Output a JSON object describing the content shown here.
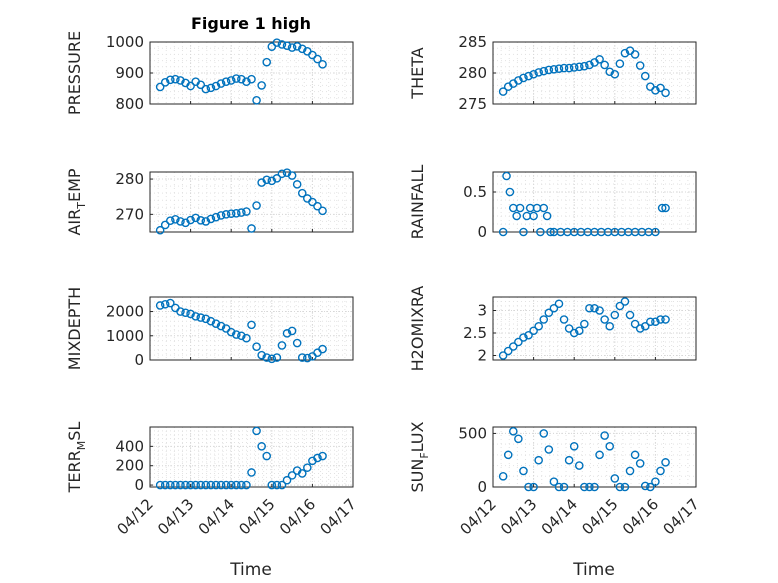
{
  "title": "Figure 1 high",
  "xlabel": "Time",
  "marker_color": "#0072BD",
  "x_ticks": [
    "04/12",
    "04/13",
    "04/14",
    "04/15",
    "04/16",
    "04/17"
  ],
  "chart_data": [
    {
      "type": "scatter",
      "title": "Figure 1 high",
      "ylabel": "PRESSURE",
      "xlabel": "",
      "xlim": [
        "04/12",
        "04/17"
      ],
      "ylim": [
        800,
        1000
      ],
      "yticks": [
        800,
        900,
        1000
      ],
      "grid": true,
      "x": [
        "04/12 06:00",
        "04/12 09:00",
        "04/12 12:00",
        "04/12 15:00",
        "04/12 18:00",
        "04/12 21:00",
        "04/13 00:00",
        "04/13 03:00",
        "04/13 06:00",
        "04/13 09:00",
        "04/13 12:00",
        "04/13 15:00",
        "04/13 18:00",
        "04/13 21:00",
        "04/14 00:00",
        "04/14 03:00",
        "04/14 06:00",
        "04/14 09:00",
        "04/14 12:00",
        "04/14 15:00",
        "04/14 18:00",
        "04/14 21:00",
        "04/15 00:00",
        "04/15 03:00",
        "04/15 06:00",
        "04/15 09:00",
        "04/15 12:00",
        "04/15 15:00",
        "04/15 18:00",
        "04/15 21:00",
        "04/16 00:00",
        "04/16 03:00",
        "04/16 06:00"
      ],
      "y": [
        855,
        870,
        878,
        880,
        876,
        868,
        858,
        872,
        862,
        848,
        852,
        858,
        866,
        872,
        876,
        882,
        880,
        872,
        880,
        812,
        860,
        935,
        985,
        998,
        992,
        988,
        982,
        986,
        978,
        970,
        958,
        945,
        928
      ]
    },
    {
      "type": "scatter",
      "ylabel": "THETA",
      "xlim": [
        "04/12",
        "04/17"
      ],
      "ylim": [
        275,
        285
      ],
      "yticks": [
        275,
        280,
        285
      ],
      "grid": true,
      "x": [
        "04/12 06:00",
        "04/12 09:00",
        "04/12 12:00",
        "04/12 15:00",
        "04/12 18:00",
        "04/12 21:00",
        "04/13 00:00",
        "04/13 03:00",
        "04/13 06:00",
        "04/13 09:00",
        "04/13 12:00",
        "04/13 15:00",
        "04/13 18:00",
        "04/13 21:00",
        "04/14 00:00",
        "04/14 03:00",
        "04/14 06:00",
        "04/14 09:00",
        "04/14 12:00",
        "04/14 15:00",
        "04/14 18:00",
        "04/14 21:00",
        "04/15 00:00",
        "04/15 03:00",
        "04/15 06:00",
        "04/15 09:00",
        "04/15 12:00",
        "04/15 15:00",
        "04/15 18:00",
        "04/15 21:00",
        "04/16 00:00",
        "04/16 03:00",
        "04/16 06:00"
      ],
      "y": [
        277.0,
        277.8,
        278.3,
        278.8,
        279.2,
        279.5,
        279.8,
        280.1,
        280.3,
        280.5,
        280.6,
        280.7,
        280.8,
        280.8,
        280.9,
        281.0,
        281.1,
        281.3,
        281.7,
        282.2,
        281.3,
        280.2,
        279.8,
        281.5,
        283.2,
        283.6,
        283.0,
        281.2,
        279.5,
        277.8,
        277.2,
        277.6,
        276.8
      ]
    },
    {
      "type": "scatter",
      "ylabel": "AIR_TEMP",
      "xlim": [
        "04/12",
        "04/17"
      ],
      "ylim": [
        265,
        282
      ],
      "yticks": [
        270,
        280
      ],
      "grid": true,
      "x": [
        "04/12 06:00",
        "04/12 09:00",
        "04/12 12:00",
        "04/12 15:00",
        "04/12 18:00",
        "04/12 21:00",
        "04/13 00:00",
        "04/13 03:00",
        "04/13 06:00",
        "04/13 09:00",
        "04/13 12:00",
        "04/13 15:00",
        "04/13 18:00",
        "04/13 21:00",
        "04/14 00:00",
        "04/14 03:00",
        "04/14 06:00",
        "04/14 09:00",
        "04/14 12:00",
        "04/14 15:00",
        "04/14 18:00",
        "04/14 21:00",
        "04/15 00:00",
        "04/15 03:00",
        "04/15 06:00",
        "04/15 09:00",
        "04/15 12:00",
        "04/15 15:00",
        "04/15 18:00",
        "04/15 21:00",
        "04/16 00:00",
        "04/16 03:00",
        "04/16 06:00"
      ],
      "y": [
        265.5,
        267.0,
        268.2,
        268.6,
        268.0,
        267.6,
        268.4,
        269.0,
        268.3,
        268.0,
        268.7,
        269.2,
        269.7,
        270.0,
        270.2,
        270.3,
        270.5,
        270.8,
        266.0,
        272.5,
        279.0,
        279.8,
        279.5,
        280.2,
        281.5,
        281.8,
        281.0,
        278.5,
        276.0,
        274.5,
        273.5,
        272.3,
        271.0
      ]
    },
    {
      "type": "scatter",
      "ylabel": "RAINFALL",
      "xlim": [
        "04/12",
        "04/17"
      ],
      "ylim": [
        0,
        0.75
      ],
      "yticks": [
        0,
        0.5
      ],
      "grid": true,
      "x": [
        "04/12 06:00",
        "04/12 08:00",
        "04/12 10:00",
        "04/12 12:00",
        "04/12 14:00",
        "04/12 16:00",
        "04/12 18:00",
        "04/12 20:00",
        "04/12 22:00",
        "04/13 00:00",
        "04/13 02:00",
        "04/13 04:00",
        "04/13 06:00",
        "04/13 08:00",
        "04/13 10:00",
        "04/13 12:00",
        "04/13 16:00",
        "04/13 20:00",
        "04/14 00:00",
        "04/14 04:00",
        "04/14 08:00",
        "04/14 12:00",
        "04/14 16:00",
        "04/14 20:00",
        "04/15 00:00",
        "04/15 04:00",
        "04/15 08:00",
        "04/15 12:00",
        "04/15 16:00",
        "04/15 20:00",
        "04/16 00:00",
        "04/16 04:00",
        "04/16 06:00"
      ],
      "y": [
        0,
        0.7,
        0.5,
        0.3,
        0.2,
        0.3,
        0,
        0.2,
        0.3,
        0.2,
        0.3,
        0,
        0.3,
        0.2,
        0,
        0,
        0,
        0,
        0,
        0,
        0,
        0,
        0,
        0,
        0,
        0,
        0,
        0,
        0,
        0,
        0,
        0.3,
        0.3
      ]
    },
    {
      "type": "scatter",
      "ylabel": "MIXDEPTH",
      "xlim": [
        "04/12",
        "04/17"
      ],
      "ylim": [
        0,
        2600
      ],
      "yticks": [
        0,
        1000,
        2000
      ],
      "grid": true,
      "x": [
        "04/12 06:00",
        "04/12 09:00",
        "04/12 12:00",
        "04/12 15:00",
        "04/12 18:00",
        "04/12 21:00",
        "04/13 00:00",
        "04/13 03:00",
        "04/13 06:00",
        "04/13 09:00",
        "04/13 12:00",
        "04/13 15:00",
        "04/13 18:00",
        "04/13 21:00",
        "04/14 00:00",
        "04/14 03:00",
        "04/14 06:00",
        "04/14 09:00",
        "04/14 12:00",
        "04/14 15:00",
        "04/14 18:00",
        "04/14 21:00",
        "04/15 00:00",
        "04/15 03:00",
        "04/15 06:00",
        "04/15 09:00",
        "04/15 12:00",
        "04/15 15:00",
        "04/15 18:00",
        "04/15 21:00",
        "04/16 00:00",
        "04/16 03:00",
        "04/16 06:00"
      ],
      "y": [
        2250,
        2300,
        2350,
        2150,
        2000,
        1950,
        1900,
        1800,
        1750,
        1700,
        1600,
        1500,
        1400,
        1300,
        1150,
        1050,
        1000,
        900,
        1450,
        550,
        200,
        100,
        50,
        100,
        600,
        1100,
        1200,
        700,
        100,
        80,
        150,
        300,
        450
      ]
    },
    {
      "type": "scatter",
      "ylabel": "H2OMIXRA",
      "xlim": [
        "04/12",
        "04/17"
      ],
      "ylim": [
        1.9,
        3.3
      ],
      "yticks": [
        2,
        2.5,
        3
      ],
      "grid": true,
      "x": [
        "04/12 06:00",
        "04/12 09:00",
        "04/12 12:00",
        "04/12 15:00",
        "04/12 18:00",
        "04/12 21:00",
        "04/13 00:00",
        "04/13 03:00",
        "04/13 06:00",
        "04/13 09:00",
        "04/13 12:00",
        "04/13 15:00",
        "04/13 18:00",
        "04/13 21:00",
        "04/14 00:00",
        "04/14 03:00",
        "04/14 06:00",
        "04/14 09:00",
        "04/14 12:00",
        "04/14 15:00",
        "04/14 18:00",
        "04/14 21:00",
        "04/15 00:00",
        "04/15 03:00",
        "04/15 06:00",
        "04/15 09:00",
        "04/15 12:00",
        "04/15 15:00",
        "04/15 18:00",
        "04/15 21:00",
        "04/16 00:00",
        "04/16 03:00",
        "04/16 06:00"
      ],
      "y": [
        2.0,
        2.1,
        2.2,
        2.3,
        2.4,
        2.45,
        2.55,
        2.65,
        2.8,
        2.95,
        3.05,
        3.15,
        2.8,
        2.6,
        2.5,
        2.55,
        2.7,
        3.05,
        3.05,
        3.0,
        2.8,
        2.65,
        2.9,
        3.1,
        3.2,
        2.9,
        2.7,
        2.6,
        2.65,
        2.75,
        2.75,
        2.8,
        2.8
      ]
    },
    {
      "type": "scatter",
      "ylabel": "TERR_MSL",
      "xlim": [
        "04/12",
        "04/17"
      ],
      "ylim": [
        -20,
        600
      ],
      "yticks": [
        0,
        200,
        400
      ],
      "grid": true,
      "x": [
        "04/12 06:00",
        "04/12 09:00",
        "04/12 12:00",
        "04/12 15:00",
        "04/12 18:00",
        "04/12 21:00",
        "04/13 00:00",
        "04/13 03:00",
        "04/13 06:00",
        "04/13 09:00",
        "04/13 12:00",
        "04/13 15:00",
        "04/13 18:00",
        "04/13 21:00",
        "04/14 00:00",
        "04/14 03:00",
        "04/14 06:00",
        "04/14 09:00",
        "04/14 12:00",
        "04/14 15:00",
        "04/14 18:00",
        "04/14 21:00",
        "04/15 00:00",
        "04/15 03:00",
        "04/15 06:00",
        "04/15 09:00",
        "04/15 12:00",
        "04/15 15:00",
        "04/15 18:00",
        "04/15 21:00",
        "04/16 00:00",
        "04/16 03:00",
        "04/16 06:00"
      ],
      "y": [
        0,
        0,
        0,
        0,
        0,
        0,
        0,
        0,
        0,
        0,
        0,
        0,
        0,
        0,
        0,
        0,
        0,
        0,
        130,
        560,
        400,
        300,
        0,
        0,
        0,
        50,
        100,
        150,
        120,
        180,
        250,
        280,
        300
      ]
    },
    {
      "type": "scatter",
      "ylabel": "SUN_FLUX",
      "xlim": [
        "04/12",
        "04/17"
      ],
      "ylim": [
        0,
        560
      ],
      "yticks": [
        0,
        500
      ],
      "grid": true,
      "x": [
        "04/12 06:00",
        "04/12 09:00",
        "04/12 12:00",
        "04/12 15:00",
        "04/12 18:00",
        "04/12 21:00",
        "04/13 00:00",
        "04/13 03:00",
        "04/13 06:00",
        "04/13 09:00",
        "04/13 12:00",
        "04/13 15:00",
        "04/13 18:00",
        "04/13 21:00",
        "04/14 00:00",
        "04/14 03:00",
        "04/14 06:00",
        "04/14 09:00",
        "04/14 12:00",
        "04/14 15:00",
        "04/14 18:00",
        "04/14 21:00",
        "04/15 00:00",
        "04/15 03:00",
        "04/15 06:00",
        "04/15 09:00",
        "04/15 12:00",
        "04/15 15:00",
        "04/15 18:00",
        "04/15 21:00",
        "04/16 00:00",
        "04/16 03:00",
        "04/16 06:00"
      ],
      "y": [
        100,
        300,
        520,
        450,
        150,
        0,
        0,
        250,
        500,
        350,
        50,
        0,
        0,
        250,
        380,
        200,
        0,
        0,
        0,
        300,
        480,
        380,
        80,
        0,
        0,
        150,
        300,
        220,
        10,
        0,
        50,
        150,
        230
      ]
    }
  ]
}
